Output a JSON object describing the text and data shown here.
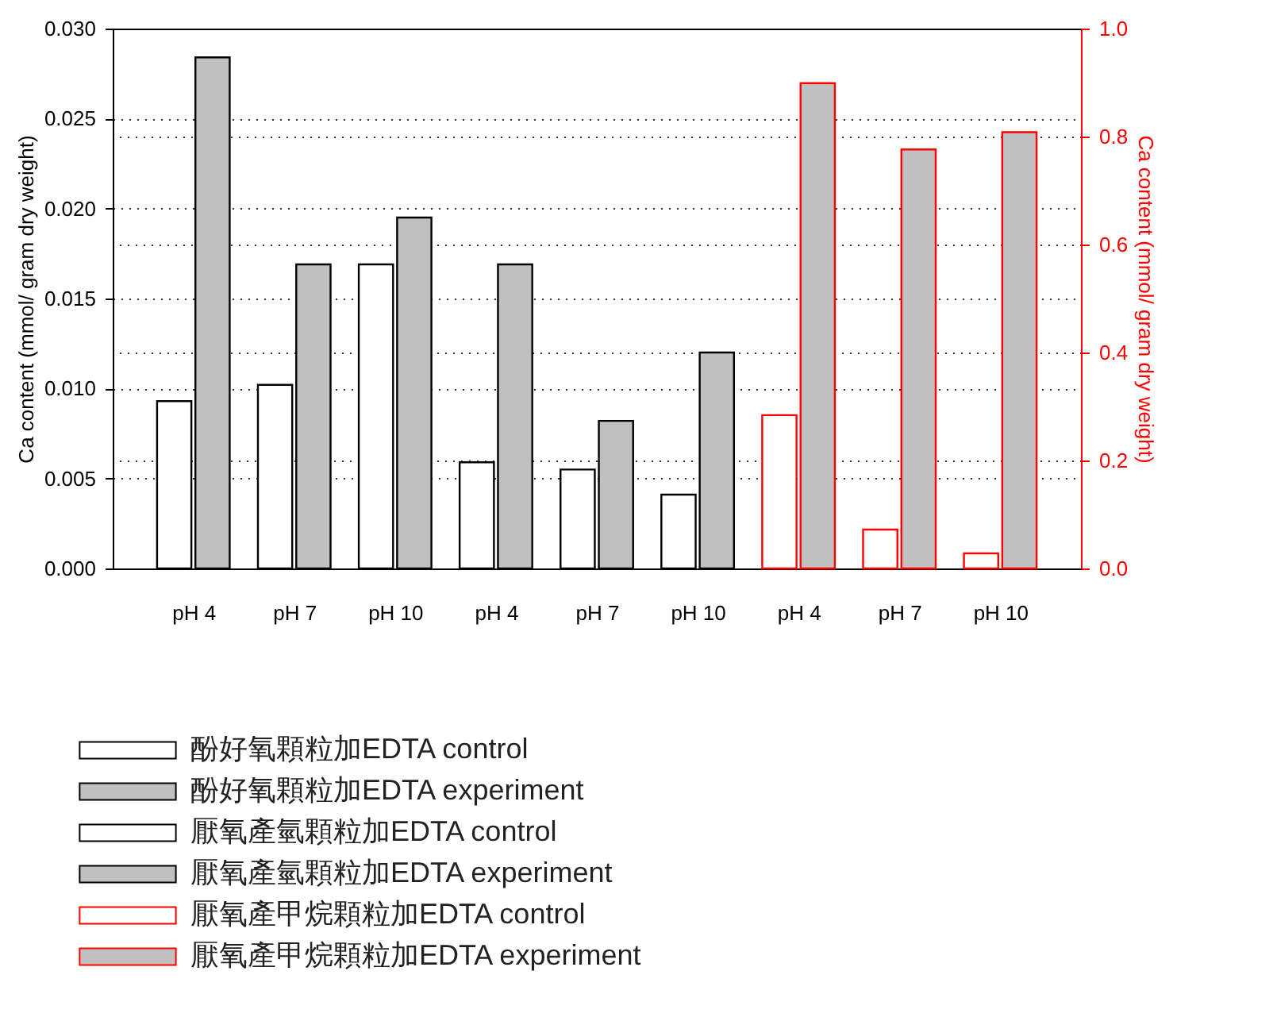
{
  "chart_data": {
    "type": "bar",
    "categories": [
      "pH 4",
      "pH 7",
      "pH 10",
      "pH 4",
      "pH 7",
      "pH 10",
      "pH 4",
      "pH 7",
      "pH 10"
    ],
    "ylabel": "Ca content (mmol/ gram dry weight)",
    "y2label": "Ca content (mmol/ gram dry weight)",
    "ylim": [
      0,
      0.03
    ],
    "yticks": [
      {
        "value": 0,
        "label": "0.000"
      },
      {
        "value": 0.005,
        "label": "0.005"
      },
      {
        "value": 0.01,
        "label": "0.010"
      },
      {
        "value": 0.015,
        "label": "0.015"
      },
      {
        "value": 0.02,
        "label": "0.020"
      },
      {
        "value": 0.025,
        "label": "0.025"
      },
      {
        "value": 0.03,
        "label": "0.030"
      }
    ],
    "y2lim": [
      0,
      1
    ],
    "y2ticks": [
      {
        "value": 0,
        "label": "0.0"
      },
      {
        "value": 0.2,
        "label": "0.2"
      },
      {
        "value": 0.4,
        "label": "0.4"
      },
      {
        "value": 0.6,
        "label": "0.6"
      },
      {
        "value": 0.8,
        "label": "0.8"
      },
      {
        "value": 1,
        "label": "1.0"
      }
    ],
    "grid": "y",
    "legend": "bottom",
    "series": [
      {
        "name": "酚好氧顆粒加EDTA control",
        "color": "#ffffff",
        "values": [
          0.0093,
          0.0102,
          0.0169,
          null,
          null,
          null,
          null,
          null,
          null
        ]
      },
      {
        "name": "酚好氧顆粒加EDTA experiment",
        "color": "#c0c0c0",
        "values": [
          0.0284,
          0.0169,
          0.0195,
          null,
          null,
          null,
          null,
          null,
          null
        ]
      },
      {
        "name": "厭氧產氫顆粒加EDTA control",
        "color": "#ffffff",
        "values": [
          null,
          null,
          null,
          0.0059,
          0.0055,
          0.0041,
          null,
          null,
          null
        ]
      },
      {
        "name": "厭氧產氫顆粒加EDTA experiment",
        "color": "#c0c0c0",
        "values": [
          null,
          null,
          null,
          0.0169,
          0.0082,
          0.012,
          null,
          null,
          null
        ]
      },
      {
        "name": "厭氧產甲烷顆粒加EDTA control",
        "color": "#ffffff",
        "axis": "y2",
        "values": [
          null,
          null,
          null,
          null,
          null,
          null,
          0.284,
          0.072,
          0.028
        ]
      },
      {
        "name": "厭氧產甲烷顆粒加EDTA experiment",
        "color": "#c0c0c0",
        "axis": "y2",
        "values": [
          null,
          null,
          null,
          null,
          null,
          null,
          0.899,
          0.776,
          0.808
        ]
      }
    ]
  }
}
